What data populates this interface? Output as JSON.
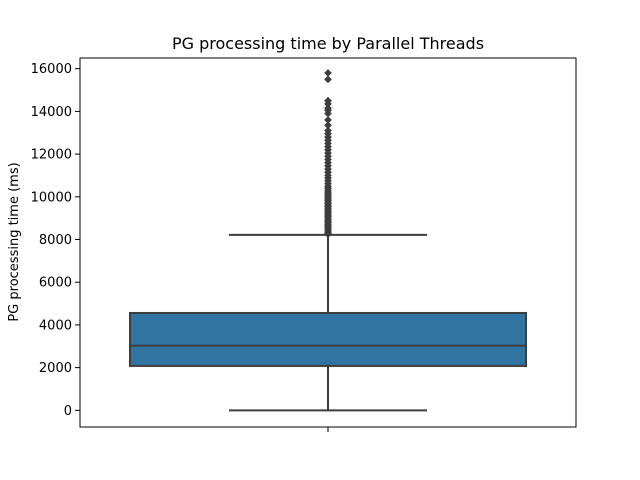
{
  "chart_data": {
    "type": "box",
    "title": "PG processing time by Parallel Threads",
    "xlabel": "",
    "ylabel": "PG processing time (ms)",
    "ylim": [
      -780,
      16500
    ],
    "yticks": [
      0,
      2000,
      4000,
      6000,
      8000,
      10000,
      12000,
      14000,
      16000
    ],
    "yticks_labels": [
      "0",
      "2000",
      "4000",
      "6000",
      "8000",
      "10000",
      "12000",
      "14000",
      "16000"
    ],
    "grid": false,
    "box": {
      "whisker_low": 0,
      "q1": 2080,
      "median": 3030,
      "q3": 4560,
      "whisker_high": 8220,
      "color": "#3274a1",
      "edge_color": "#3d3d3d"
    },
    "outliers": [
      8250,
      8300,
      8350,
      8420,
      8500,
      8560,
      8640,
      8700,
      8780,
      8850,
      8920,
      9000,
      9080,
      9150,
      9230,
      9300,
      9380,
      9450,
      9530,
      9600,
      9680,
      9750,
      9830,
      9900,
      9980,
      10060,
      10140,
      10220,
      10300,
      10400,
      10500,
      10620,
      10750,
      10880,
      11000,
      11150,
      11300,
      11450,
      11600,
      11750,
      11900,
      12050,
      12200,
      12350,
      12500,
      12650,
      12800,
      12950,
      13100,
      13350,
      13600,
      13900,
      14050,
      14150,
      14350,
      14500,
      15500,
      15800
    ]
  }
}
